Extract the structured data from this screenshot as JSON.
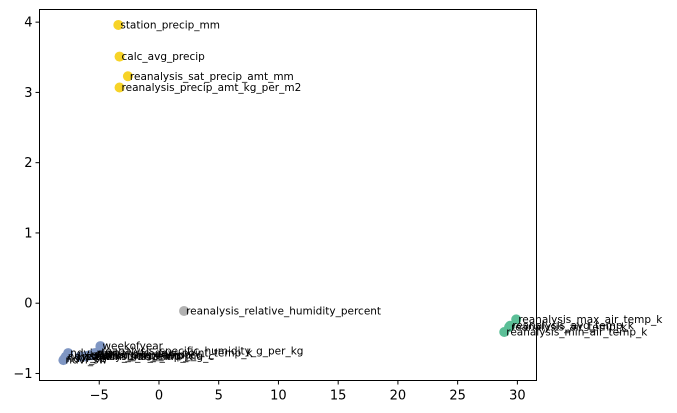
{
  "chart_data": {
    "type": "scatter",
    "title": "",
    "xlabel": "",
    "ylabel": "",
    "xlim": [
      -10.0,
      31.6
    ],
    "ylim": [
      -1.1,
      4.18
    ],
    "xticks": [
      -5,
      0,
      5,
      10,
      15,
      20,
      25,
      30
    ],
    "yticks": [
      -1,
      0,
      1,
      2,
      3,
      4
    ],
    "xtick_labels": [
      "−5",
      "0",
      "5",
      "10",
      "15",
      "20",
      "25",
      "30"
    ],
    "ytick_labels": [
      "−1",
      "0",
      "1",
      "2",
      "3",
      "4"
    ],
    "grid": false,
    "legend": "none",
    "colors": {
      "yellow": "#f7d327",
      "green": "#5bbf97",
      "gray": "#b1b1b1",
      "blue": "#7f96c3"
    },
    "points": [
      {
        "label": "station_precip_mm",
        "x": -3.4,
        "y": 3.96,
        "color": "yellow"
      },
      {
        "label": "calc_avg_precip",
        "x": -3.3,
        "y": 3.51,
        "color": "yellow"
      },
      {
        "label": "reanalysis_sat_precip_amt_mm",
        "x": -2.6,
        "y": 3.23,
        "color": "yellow"
      },
      {
        "label": "reanalysis_precip_amt_kg_per_m2",
        "x": -3.3,
        "y": 3.07,
        "color": "yellow"
      },
      {
        "label": "reanalysis_max_air_temp_k",
        "x": 29.9,
        "y": -0.23,
        "color": "green"
      },
      {
        "label": "reanalysis_avg_temp_k",
        "x": 29.4,
        "y": -0.32,
        "color": "green"
      },
      {
        "label": "reanalysis_air_temp_k",
        "x": 29.3,
        "y": -0.34,
        "color": "green"
      },
      {
        "label": "reanalysis_min_air_temp_k",
        "x": 28.9,
        "y": -0.41,
        "color": "green"
      },
      {
        "label": "reanalysis_relative_humidity_percent",
        "x": 2.1,
        "y": -0.11,
        "color": "gray"
      },
      {
        "label": "weekofyear",
        "x": -4.9,
        "y": -0.61,
        "color": "blue"
      },
      {
        "label": "reanalysis_specific_humidity_g_per_kg",
        "x": -5.0,
        "y": -0.68,
        "color": "blue"
      },
      {
        "label": "reanalysis_dew_point_temp_k",
        "x": -5.4,
        "y": -0.71,
        "color": "blue"
      },
      {
        "label": "station_max_temp_c",
        "x": -5.6,
        "y": -0.74,
        "color": "blue"
      },
      {
        "label": "station_avg_temp_c",
        "x": -5.8,
        "y": -0.74,
        "color": "blue"
      },
      {
        "label": "station_min_temp_c",
        "x": -6.0,
        "y": -0.75,
        "color": "blue"
      },
      {
        "label": "station_diur_temp_rng_c",
        "x": -6.3,
        "y": -0.76,
        "color": "blue"
      },
      {
        "label": "reanalysis_tdtr_k",
        "x": -6.6,
        "y": -0.76,
        "color": "blue"
      },
      {
        "label": "ndvi_ne",
        "x": -7.6,
        "y": -0.71,
        "color": "blue"
      },
      {
        "label": "ndvi_nw",
        "x": -7.8,
        "y": -0.76,
        "color": "blue"
      },
      {
        "label": "ndvi_se",
        "x": -7.9,
        "y": -0.79,
        "color": "blue"
      },
      {
        "label": "ndvi_sw",
        "x": -8.0,
        "y": -0.81,
        "color": "blue"
      }
    ]
  }
}
